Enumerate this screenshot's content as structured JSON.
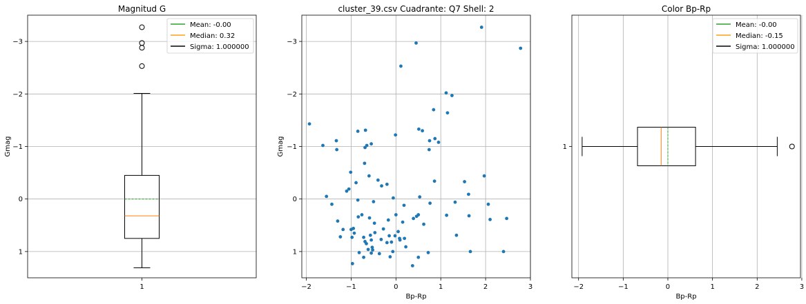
{
  "chart_data": [
    {
      "type": "boxplot",
      "orientation": "vertical",
      "title": "Magnitud G",
      "xlabel": "",
      "ylabel": "Gmag",
      "y_inverted": true,
      "ylim": [
        1.5,
        -3.5
      ],
      "yticks": [
        -3,
        -2,
        -1,
        0,
        1
      ],
      "ytick_labels": [
        "−3",
        "−2",
        "−1",
        "0",
        "1"
      ],
      "xticks": [
        "1"
      ],
      "grid": "y",
      "box": {
        "q1": -0.45,
        "median": 0.32,
        "q3": 0.75,
        "whisker_low": -2.01,
        "whisker_high": 1.31,
        "mean": -0.0
      },
      "outliers": [
        -3.27,
        -2.97,
        -2.88,
        -2.53
      ],
      "legend": {
        "placement": "upper right",
        "entries": [
          {
            "label": "Mean: -0.00",
            "color": "#2ca02c"
          },
          {
            "label": "Median: 0.32",
            "color": "#ff9f1a"
          },
          {
            "label": "Sigma: 1.000000",
            "color": "#000000"
          }
        ]
      }
    },
    {
      "type": "scatter",
      "title": "cluster_39.csv Cuadrante: Q7 Shell: 2",
      "xlabel": "Bp-Rp",
      "ylabel": "Gmag",
      "y_inverted": true,
      "xlim": [
        -2.1,
        3.0
      ],
      "ylim": [
        1.5,
        -3.5
      ],
      "xticks": [
        -2,
        -1,
        0,
        1,
        2,
        3
      ],
      "xtick_labels": [
        "−2",
        "−1",
        "0",
        "1",
        "2",
        "3"
      ],
      "yticks": [
        -3,
        -2,
        -1,
        0,
        1
      ],
      "ytick_labels": [
        "−3",
        "−2",
        "−1",
        "0",
        "1"
      ],
      "grid": "both",
      "color": "#1f77b4",
      "points": [
        [
          -1.93,
          -1.43
        ],
        [
          -1.63,
          -1.02
        ],
        [
          -1.55,
          -0.05
        ],
        [
          -1.43,
          0.1
        ],
        [
          -1.33,
          -1.11
        ],
        [
          -1.32,
          -0.94
        ],
        [
          -1.3,
          0.42
        ],
        [
          -1.24,
          0.72
        ],
        [
          -1.18,
          0.58
        ],
        [
          -1.1,
          -0.15
        ],
        [
          -1.05,
          -0.19
        ],
        [
          -1.01,
          -0.51
        ],
        [
          -1.0,
          0.58
        ],
        [
          -0.98,
          0.73
        ],
        [
          -0.95,
          0.56
        ],
        [
          -0.93,
          0.65
        ],
        [
          -0.97,
          1.23
        ],
        [
          -0.89,
          -0.31
        ],
        [
          -0.85,
          -1.29
        ],
        [
          -0.85,
          0.02
        ],
        [
          -0.84,
          0.34
        ],
        [
          -0.82,
          1.02
        ],
        [
          -0.76,
          0.3
        ],
        [
          -0.72,
          0.73
        ],
        [
          -0.72,
          1.11
        ],
        [
          -0.7,
          -0.68
        ],
        [
          -0.69,
          0.81
        ],
        [
          -0.69,
          -0.98
        ],
        [
          -0.66,
          0.85
        ],
        [
          -0.65,
          -1.02
        ],
        [
          -0.68,
          -1.31
        ],
        [
          -0.62,
          0.96
        ],
        [
          -0.6,
          -0.44
        ],
        [
          -0.59,
          0.36
        ],
        [
          -0.57,
          0.69
        ],
        [
          -0.55,
          0.78
        ],
        [
          -0.53,
          0.92
        ],
        [
          -0.52,
          0.97
        ],
        [
          -0.55,
          1.03
        ],
        [
          -0.55,
          -1.05
        ],
        [
          -0.5,
          0.05
        ],
        [
          -0.48,
          0.46
        ],
        [
          -0.47,
          0.64
        ],
        [
          -0.4,
          -0.36
        ],
        [
          -0.37,
          1.04
        ],
        [
          -0.33,
          0.77
        ],
        [
          -0.32,
          -0.25
        ],
        [
          -0.28,
          0.57
        ],
        [
          -0.2,
          0.83
        ],
        [
          -0.2,
          -0.28
        ],
        [
          -0.17,
          0.4
        ],
        [
          -0.15,
          0.7
        ],
        [
          -0.13,
          1.1
        ],
        [
          -0.1,
          0.82
        ],
        [
          -0.07,
          1.0
        ],
        [
          -0.06,
          -0.02
        ],
        [
          -0.02,
          0.7
        ],
        [
          -0.01,
          -1.22
        ],
        [
          0.0,
          0.3
        ],
        [
          0.05,
          0.62
        ],
        [
          0.08,
          0.75
        ],
        [
          0.09,
          0.78
        ],
        [
          0.11,
          -2.53
        ],
        [
          0.15,
          0.44
        ],
        [
          0.18,
          0.12
        ],
        [
          0.19,
          0.75
        ],
        [
          0.22,
          0.91
        ],
        [
          0.37,
          1.27
        ],
        [
          0.39,
          0.37
        ],
        [
          0.45,
          -2.97
        ],
        [
          0.46,
          0.33
        ],
        [
          0.5,
          0.3
        ],
        [
          0.5,
          1.11
        ],
        [
          0.51,
          -1.33
        ],
        [
          0.53,
          -0.04
        ],
        [
          0.59,
          -1.3
        ],
        [
          0.62,
          0.48
        ],
        [
          0.72,
          1.02
        ],
        [
          0.74,
          -0.94
        ],
        [
          0.75,
          -1.11
        ],
        [
          0.76,
          0.08
        ],
        [
          0.84,
          -1.7
        ],
        [
          0.86,
          -0.34
        ],
        [
          0.87,
          -1.15
        ],
        [
          0.95,
          -1.08
        ],
        [
          1.12,
          -2.02
        ],
        [
          1.13,
          0.31
        ],
        [
          1.15,
          -1.64
        ],
        [
          1.25,
          -1.97
        ],
        [
          1.32,
          0.06
        ],
        [
          1.35,
          0.69
        ],
        [
          1.53,
          -0.33
        ],
        [
          1.62,
          -0.09
        ],
        [
          1.63,
          0.32
        ],
        [
          1.66,
          1.0
        ],
        [
          1.91,
          -3.27
        ],
        [
          1.97,
          -0.44
        ],
        [
          2.06,
          0.1
        ],
        [
          2.1,
          0.39
        ],
        [
          2.4,
          1.0
        ],
        [
          2.47,
          0.37
        ],
        [
          2.78,
          -2.87
        ]
      ]
    },
    {
      "type": "boxplot",
      "orientation": "horizontal",
      "title": "Color Bp-Rp",
      "xlabel": "Bp-Rp",
      "ylabel": "",
      "xlim": [
        -2.15,
        2.97
      ],
      "xticks": [
        -2,
        -1,
        0,
        1,
        2,
        3
      ],
      "xtick_labels": [
        "−2",
        "−1",
        "0",
        "1",
        "2",
        "3"
      ],
      "yticks": [
        "1"
      ],
      "grid": "x",
      "box": {
        "q1": -0.68,
        "median": -0.15,
        "q3": 0.62,
        "whisker_low": -1.92,
        "whisker_high": 2.45,
        "mean": -0.0
      },
      "outliers": [
        2.78
      ],
      "legend": {
        "placement": "upper right",
        "entries": [
          {
            "label": "Mean: -0.00",
            "color": "#2ca02c"
          },
          {
            "label": "Median: -0.15",
            "color": "#ff9f1a"
          },
          {
            "label": "Sigma: 1.000000",
            "color": "#000000"
          }
        ]
      }
    }
  ]
}
